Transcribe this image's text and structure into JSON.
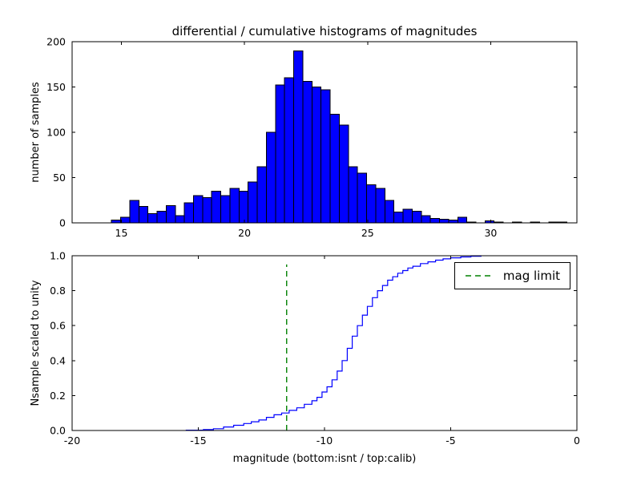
{
  "figure": {
    "background": "#ffffff",
    "text_color": "#000000"
  },
  "chart_data": [
    {
      "type": "bar",
      "title": "differential / cumulative histograms of magnitudes",
      "xlabel": "",
      "ylabel": "number of samples",
      "xlim": [
        13,
        33.5
      ],
      "ylim": [
        0,
        200
      ],
      "xticks": [
        15,
        20,
        25,
        30
      ],
      "yticks": [
        0,
        50,
        100,
        150,
        200
      ],
      "ytick_decimals": 0,
      "grid": false,
      "bar_color": "#0000ff",
      "bar_edge_color": "#000000",
      "bin_start": 14.6,
      "bin_width": 0.37,
      "values": [
        3,
        6,
        25,
        18,
        10,
        13,
        19,
        8,
        22,
        30,
        28,
        35,
        30,
        38,
        35,
        45,
        62,
        100,
        152,
        160,
        190,
        156,
        150,
        147,
        120,
        108,
        62,
        55,
        42,
        38,
        25,
        12,
        15,
        13,
        8,
        5,
        4,
        3,
        6,
        1,
        0,
        2,
        1,
        0,
        1,
        0,
        1,
        0,
        1,
        1
      ]
    },
    {
      "type": "line",
      "title": "",
      "xlabel": "magnitude (bottom:isnt / top:calib)",
      "ylabel": "Nsample scaled to unity",
      "xlim": [
        -20,
        0
      ],
      "ylim": [
        0,
        1
      ],
      "xticks": [
        -20,
        -15,
        -10,
        -5,
        0
      ],
      "yticks": [
        0,
        0.2,
        0.4,
        0.6,
        0.8,
        1.0
      ],
      "ytick_decimals": 1,
      "grid": false,
      "line_color": "#0000ff",
      "step": true,
      "x": [
        -15.5,
        -14.8,
        -14.4,
        -14.0,
        -13.6,
        -13.2,
        -12.9,
        -12.6,
        -12.3,
        -12.0,
        -11.7,
        -11.4,
        -11.1,
        -10.8,
        -10.5,
        -10.3,
        -10.1,
        -9.9,
        -9.7,
        -9.5,
        -9.3,
        -9.1,
        -8.9,
        -8.7,
        -8.5,
        -8.3,
        -8.1,
        -7.9,
        -7.7,
        -7.5,
        -7.3,
        -7.1,
        -6.9,
        -6.7,
        -6.5,
        -6.2,
        -5.9,
        -5.6,
        -5.3,
        -5.0,
        -4.6,
        -4.2,
        -3.8
      ],
      "y": [
        0.002,
        0.005,
        0.01,
        0.02,
        0.03,
        0.04,
        0.05,
        0.06,
        0.075,
        0.09,
        0.1,
        0.115,
        0.13,
        0.15,
        0.17,
        0.19,
        0.22,
        0.25,
        0.29,
        0.34,
        0.4,
        0.47,
        0.54,
        0.6,
        0.66,
        0.71,
        0.76,
        0.8,
        0.83,
        0.86,
        0.88,
        0.9,
        0.915,
        0.93,
        0.94,
        0.955,
        0.965,
        0.975,
        0.982,
        0.988,
        0.993,
        0.997,
        1.0
      ],
      "vline": {
        "x": -11.5,
        "y0": 0,
        "y1": 0.95,
        "color": "#008000",
        "style": "dashed",
        "label": "mag limit"
      },
      "legend": {
        "label": "mag limit",
        "loc": "upper right"
      }
    }
  ]
}
